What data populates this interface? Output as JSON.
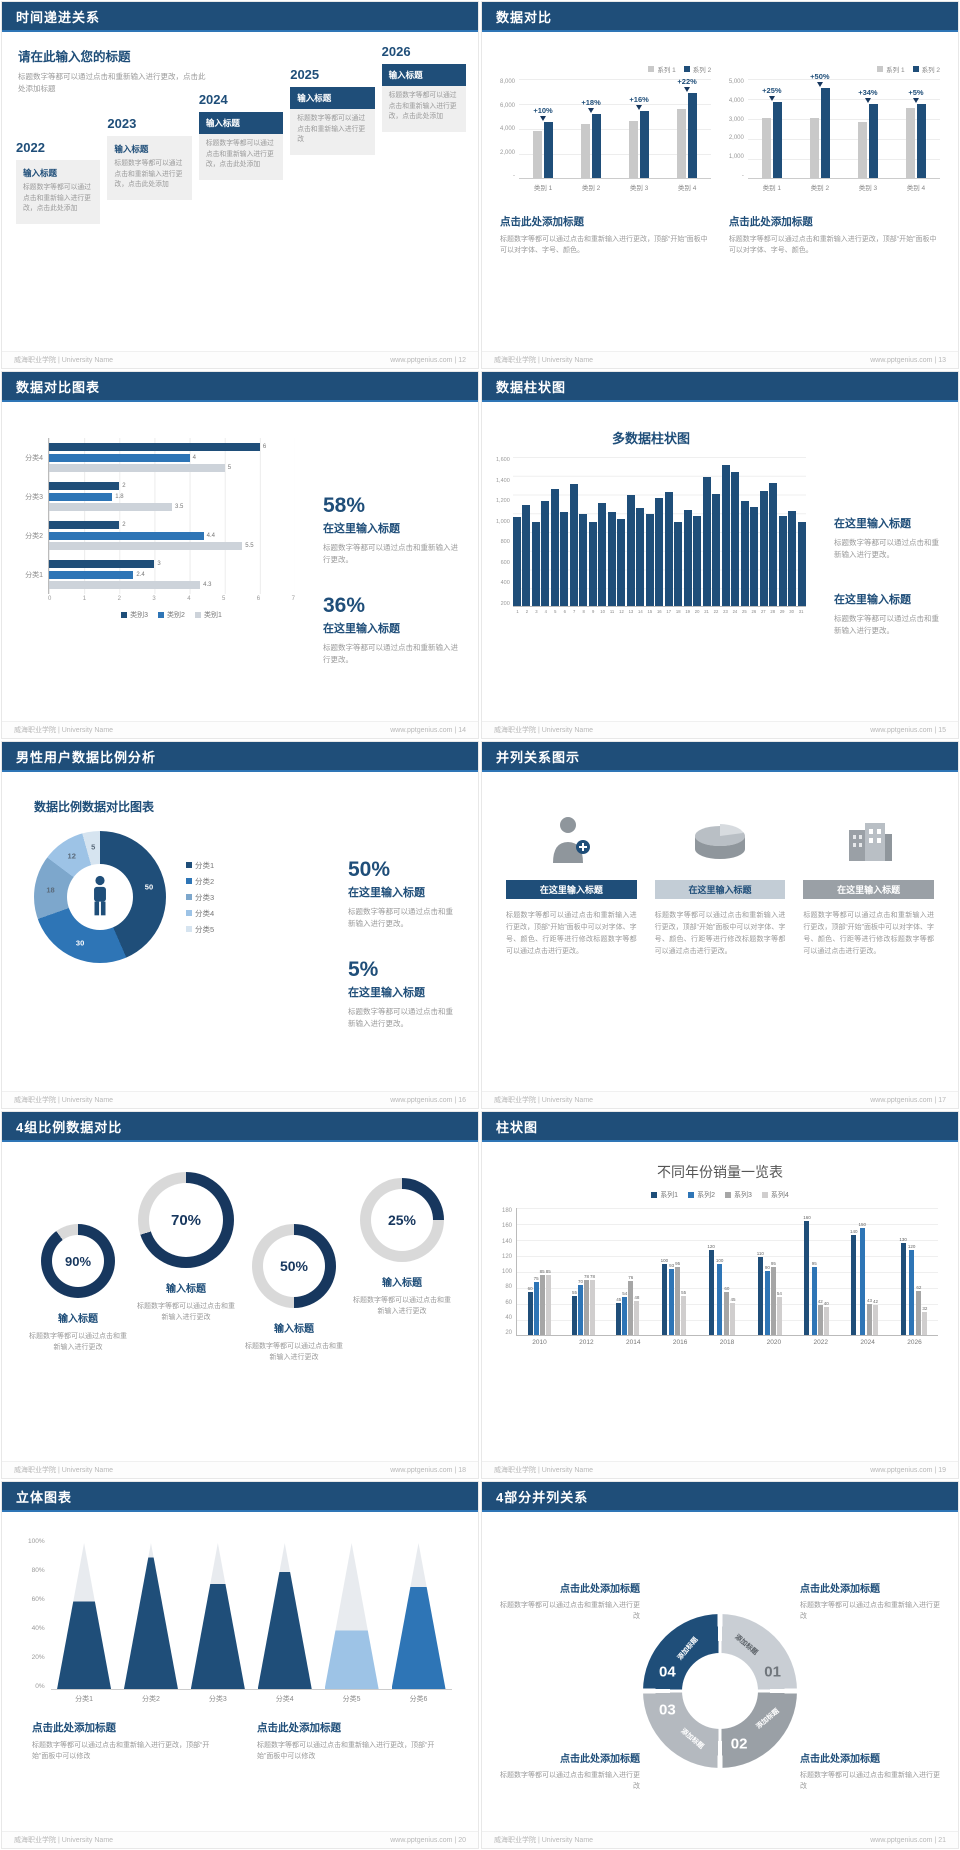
{
  "footer": {
    "left": "威海职业学院 | University Name"
  },
  "slides": {
    "s12": {
      "title": "时间递进关系",
      "footer_right": "www.pptgenius.com | 12",
      "intro_title": "请在此输入您的标题",
      "intro_desc": "标题数字等都可以通过点击和重新输入进行更改，点击此处添加标题",
      "steps": [
        {
          "year": "2022",
          "title": "输入标题",
          "desc": "标题数字等都可以通过点击和重新输入进行更改，点击此处添加",
          "dark": false
        },
        {
          "year": "2023",
          "title": "输入标题",
          "desc": "标题数字等都可以通过点击和重新输入进行更改，点击此处添加",
          "dark": false
        },
        {
          "year": "2024",
          "title": "输入标题",
          "desc": "标题数字等都可以通过点击和重新输入进行更改，点击此处添加",
          "dark": true
        },
        {
          "year": "2025",
          "title": "输入标题",
          "desc": "标题数字等都可以通过点击和重新输入进行更改",
          "dark": true
        },
        {
          "year": "2026",
          "title": "输入标题",
          "desc": "标题数字等都可以通过点击和重新输入进行更改，点击此处添加",
          "dark": true
        }
      ]
    },
    "s13": {
      "title": "数据对比",
      "footer_right": "www.pptgenius.com | 13",
      "charts": [
        {
          "type": "bar",
          "legend": [
            "系列 1",
            "系列 2"
          ],
          "yticks": [
            "8,000",
            "6,000",
            "4,000",
            "2,000",
            "-"
          ],
          "max": 8000,
          "categories": [
            "类别 1",
            "类别 2",
            "类别 3",
            "类别 4"
          ],
          "series1": [
            3800,
            4300,
            4600,
            5500
          ],
          "series2": [
            4500,
            5100,
            5400,
            6800
          ],
          "pcts": [
            "+10%",
            "+18%",
            "+16%",
            "+22%"
          ],
          "caption": "点击此处添加标题",
          "caption_desc": "标题数字等都可以通过点击和重新输入进行更改，顶部“开始”面板中可以对字体、字号、颜色。"
        },
        {
          "type": "bar",
          "legend": [
            "系列 1",
            "系列 2"
          ],
          "yticks": [
            "5,000",
            "4,000",
            "3,000",
            "2,000",
            "1,000",
            "-"
          ],
          "max": 5000,
          "categories": [
            "类别 1",
            "类别 2",
            "类别 3",
            "类别 4"
          ],
          "series1": [
            3000,
            3000,
            2800,
            3500
          ],
          "series2": [
            3800,
            4500,
            3700,
            3700
          ],
          "pcts": [
            "+25%",
            "+50%",
            "+34%",
            "+5%"
          ],
          "caption": "点击此处添加标题",
          "caption_desc": "标题数字等都可以通过点击和重新输入进行更改，顶部“开始”面板中可以对字体、字号、颜色。"
        }
      ]
    },
    "s14": {
      "title": "数据对比图表",
      "footer_right": "www.pptgenius.com | 14",
      "chart": {
        "type": "bar",
        "categories": [
          "分类4",
          "分类3",
          "分类2",
          "分类1"
        ],
        "xticks": [
          "0",
          "1",
          "2",
          "3",
          "4",
          "5",
          "6",
          "7"
        ],
        "xmax": 7,
        "series": [
          {
            "name": "类别3",
            "color": "#1f4e79",
            "values": [
              6,
              2,
              2,
              3
            ]
          },
          {
            "name": "类别2",
            "color": "#2e75b6",
            "values": [
              4,
              1.8,
              4.4,
              2.4
            ]
          },
          {
            "name": "类别1",
            "color": "#cdd3da",
            "values": [
              5,
              3.5,
              5.5,
              4.3
            ]
          }
        ]
      },
      "stats": [
        {
          "pct": "58%",
          "title": "在这里输入标题",
          "desc": "标题数字等都可以通过点击和重新输入进行更改。"
        },
        {
          "pct": "36%",
          "title": "在这里输入标题",
          "desc": "标题数字等都可以通过点击和重新输入进行更改。"
        }
      ]
    },
    "s15": {
      "title": "数据柱状图",
      "footer_right": "www.pptgenius.com | 15",
      "chart": {
        "type": "bar",
        "title": "多数据柱状图",
        "yticks": [
          "1,600",
          "1,400",
          "1,200",
          "1,000",
          "800",
          "600",
          "400",
          "200"
        ],
        "max": 1600,
        "xlabels": [
          "1",
          "2",
          "3",
          "4",
          "5",
          "6",
          "7",
          "8",
          "9",
          "10",
          "11",
          "12",
          "13",
          "14",
          "15",
          "16",
          "17",
          "18",
          "19",
          "20",
          "21",
          "22",
          "23",
          "24",
          "25",
          "26",
          "27",
          "28",
          "29",
          "30",
          "31"
        ],
        "values": [
          950,
          1080,
          900,
          1120,
          1250,
          1000,
          1300,
          980,
          900,
          1100,
          1000,
          930,
          1180,
          1050,
          980,
          1150,
          1220,
          900,
          1020,
          960,
          1380,
          1200,
          1500,
          1430,
          1120,
          1060,
          1230,
          1310,
          960,
          1010,
          900
        ]
      },
      "stats": [
        {
          "title": "在这里输入标题",
          "desc": "标题数字等都可以通过点击和重新输入进行更改。"
        },
        {
          "title": "在这里输入标题",
          "desc": "标题数字等都可以通过点击和重新输入进行更改。"
        }
      ]
    },
    "s16": {
      "title": "男性用户数据比例分析",
      "footer_right": "www.pptgenius.com | 16",
      "chart": {
        "type": "pie",
        "title": "数据比例数据对比图表",
        "values": [
          50,
          30,
          18,
          12,
          5
        ],
        "colors": [
          "#1f4e79",
          "#2e75b6",
          "#7da7cc",
          "#9dc3e6",
          "#d6e4f0"
        ],
        "legend": [
          "分类1",
          "分类2",
          "分类3",
          "分类4",
          "分类5"
        ]
      },
      "stats": [
        {
          "pct": "50%",
          "title": "在这里输入标题",
          "desc": "标题数字等都可以通过点击和重新输入进行更改。"
        },
        {
          "pct": "5%",
          "title": "在这里输入标题",
          "desc": "标题数字等都可以通过点击和重新输入进行更改。"
        }
      ]
    },
    "s17": {
      "title": "并列关系图示",
      "footer_right": "www.pptgenius.com | 17",
      "items": [
        {
          "icon": "person-plus-icon",
          "header": "在这里输入标题",
          "header_bg": "#1f4e79",
          "header_color": "#ffffff",
          "desc": "标题数字等都可以通过点击和重新输入进行更改，顶部“开始”面板中可以对字体、字号、颜色、行距等进行修改标题数字等都可以通过点击进行更改。"
        },
        {
          "icon": "pie-3d-icon",
          "header": "在这里输入标题",
          "header_bg": "#c3cdd6",
          "header_color": "#1f4e79",
          "desc": "标题数字等都可以通过点击和重新输入进行更改，顶部“开始”面板中可以对字体、字号、颜色、行距等进行修改标题数字等都可以通过点击进行更改。"
        },
        {
          "icon": "building-icon",
          "header": "在这里输入标题",
          "header_bg": "#9aa0a6",
          "header_color": "#ffffff",
          "desc": "标题数字等都可以通过点击和重新输入进行更改，顶部“开始”面板中可以对字体、字号、颜色、行距等进行修改标题数字等都可以通过点击进行更改。"
        }
      ]
    },
    "s18": {
      "title": "4组比例数据对比",
      "footer_right": "www.pptgenius.com | 18",
      "rings": [
        {
          "pct": 90,
          "label": "90%",
          "title": "输入标题",
          "desc": "标题数字等都可以通过点击和重新输入进行更改"
        },
        {
          "pct": 70,
          "label": "70%",
          "title": "输入标题",
          "desc": "标题数字等都可以通过点击和重新输入进行更改"
        },
        {
          "pct": 50,
          "label": "50%",
          "title": "输入标题",
          "desc": "标题数字等都可以通过点击和重新输入进行更改"
        },
        {
          "pct": 25,
          "label": "25%",
          "title": "输入标题",
          "desc": "标题数字等都可以通过点击和重新输入进行更改"
        }
      ]
    },
    "s19": {
      "title": "柱状图",
      "footer_right": "www.pptgenius.com | 19",
      "chart": {
        "type": "bar",
        "title": "不同年份销量一览表",
        "yticks": [
          "180",
          "160",
          "140",
          "120",
          "100",
          "80",
          "60",
          "40",
          "20"
        ],
        "max": 180,
        "categories": [
          "2010",
          "2012",
          "2014",
          "2016",
          "2018",
          "2020",
          "2022",
          "2024",
          "2026"
        ],
        "series": [
          {
            "name": "系列1",
            "color": "#1f4e79",
            "values": [
              60,
              55,
              45,
              100,
              120,
              110,
              160,
              140,
              130
            ]
          },
          {
            "name": "系列2",
            "color": "#2e75b6",
            "values": [
              75,
              70,
              54,
              93,
              100,
              90,
              95,
              150,
              120
            ]
          },
          {
            "name": "系列3",
            "color": "#a6a6a6",
            "values": [
              85,
              78,
              76,
              95,
              60,
              95,
              42,
              43,
              62
            ]
          },
          {
            "name": "系列4",
            "color": "#d0cece",
            "values": [
              85,
              78,
              48,
              55,
              45,
              54,
              40,
              42,
              32
            ]
          }
        ]
      }
    },
    "s20": {
      "title": "立体图表",
      "footer_right": "www.pptgenius.com | 20",
      "chart": {
        "type": "bar",
        "yticks": [
          "100%",
          "80%",
          "60%",
          "40%",
          "20%",
          "0%"
        ],
        "categories": [
          "分类1",
          "分类2",
          "分类3",
          "分类4",
          "分类5",
          "分类6"
        ],
        "cones": [
          {
            "fill": 60,
            "color": "#1f4e79"
          },
          {
            "fill": 90,
            "color": "#1f4e79"
          },
          {
            "fill": 72,
            "color": "#1f4e79"
          },
          {
            "fill": 80,
            "color": "#1f4e79"
          },
          {
            "fill": 40,
            "color": "#9dc3e6"
          },
          {
            "fill": 70,
            "color": "#2e75b6"
          }
        ]
      },
      "captions": [
        {
          "title": "点击此处添加标题",
          "desc": "标题数字等都可以通过点击和重新输入进行更改，顶部“开始”面板中可以修改"
        },
        {
          "title": "点击此处添加标题",
          "desc": "标题数字等都可以通过点击和重新输入进行更改，顶部“开始”面板中可以修改"
        }
      ]
    },
    "s21": {
      "title": "4部分并列关系",
      "footer_right": "www.pptgenius.com | 21",
      "ring": {
        "segments": [
          {
            "num": "01",
            "label": "添加标题",
            "color": "#c9ced4"
          },
          {
            "num": "02",
            "label": "添加标题",
            "color": "#9aa0a6"
          },
          {
            "num": "03",
            "label": "添加标题",
            "color": "#b4b9bf"
          },
          {
            "num": "04",
            "label": "添加标题",
            "color": "#1f4e79"
          }
        ]
      },
      "blocks": [
        {
          "title": "点击此处添加标题",
          "desc": "标题数字等都可以通过点击和重新输入进行更改"
        },
        {
          "title": "点击此处添加标题",
          "desc": "标题数字等都可以通过点击和重新输入进行更改"
        },
        {
          "title": "点击此处添加标题",
          "desc": "标题数字等都可以通过点击和重新输入进行更改"
        },
        {
          "title": "点击此处添加标题",
          "desc": "标题数字等都可以通过点击和重新输入进行更改"
        }
      ]
    }
  }
}
